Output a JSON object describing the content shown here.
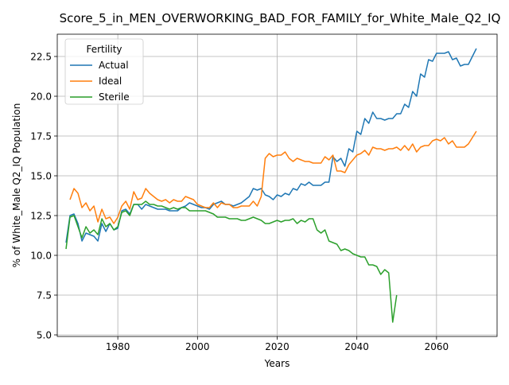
{
  "chart_data": {
    "type": "line",
    "title": "Score_5_in_MEN_OVERWORKING_BAD_FOR_FAMILY_for_White_Male_Q2_IQ",
    "xlabel": "Years",
    "ylabel": "% of White_Male Q2_IQ Population",
    "xlim": [
      1964.8,
      2075.2
    ],
    "ylim": [
      4.9,
      23.9
    ],
    "xticks": [
      1980,
      2000,
      2020,
      2040,
      2060
    ],
    "yticks": [
      5.0,
      7.5,
      10.0,
      12.5,
      15.0,
      17.5,
      20.0,
      22.5
    ],
    "grid": true,
    "legend": {
      "title": "Fertility",
      "placement": "top-left"
    },
    "series": [
      {
        "name": "Actual",
        "color": "#1f77b4",
        "points": [
          [
            1967,
            10.8
          ],
          [
            1968,
            12.5
          ],
          [
            1969,
            12.6
          ],
          [
            1970,
            12.0
          ],
          [
            1971,
            10.9
          ],
          [
            1972,
            11.4
          ],
          [
            1973,
            11.3
          ],
          [
            1974,
            11.2
          ],
          [
            1975,
            10.9
          ],
          [
            1976,
            12.0
          ],
          [
            1977,
            11.5
          ],
          [
            1978,
            12.0
          ],
          [
            1979,
            11.6
          ],
          [
            1980,
            11.7
          ],
          [
            1981,
            12.8
          ],
          [
            1982,
            12.9
          ],
          [
            1983,
            12.6
          ],
          [
            1984,
            13.2
          ],
          [
            1985,
            13.2
          ],
          [
            1986,
            12.9
          ],
          [
            1987,
            13.2
          ],
          [
            1988,
            13.1
          ],
          [
            1989,
            13.0
          ],
          [
            1990,
            12.9
          ],
          [
            1991,
            12.9
          ],
          [
            1992,
            12.9
          ],
          [
            1993,
            12.8
          ],
          [
            1994,
            12.8
          ],
          [
            1995,
            12.8
          ],
          [
            1996,
            13.0
          ],
          [
            1997,
            13.1
          ],
          [
            1998,
            13.3
          ],
          [
            1999,
            13.2
          ],
          [
            2000,
            13.1
          ],
          [
            2001,
            13.0
          ],
          [
            2002,
            13.0
          ],
          [
            2003,
            12.9
          ],
          [
            2004,
            13.2
          ],
          [
            2005,
            13.3
          ],
          [
            2006,
            13.4
          ],
          [
            2007,
            13.2
          ],
          [
            2008,
            13.2
          ],
          [
            2009,
            13.1
          ],
          [
            2010,
            13.2
          ],
          [
            2011,
            13.3
          ],
          [
            2012,
            13.5
          ],
          [
            2013,
            13.7
          ],
          [
            2014,
            14.2
          ],
          [
            2015,
            14.1
          ],
          [
            2016,
            14.2
          ],
          [
            2017,
            13.8
          ],
          [
            2018,
            13.7
          ],
          [
            2019,
            13.5
          ],
          [
            2020,
            13.8
          ],
          [
            2021,
            13.7
          ],
          [
            2022,
            13.9
          ],
          [
            2023,
            13.8
          ],
          [
            2024,
            14.2
          ],
          [
            2025,
            14.1
          ],
          [
            2026,
            14.5
          ],
          [
            2027,
            14.4
          ],
          [
            2028,
            14.6
          ],
          [
            2029,
            14.4
          ],
          [
            2030,
            14.4
          ],
          [
            2031,
            14.4
          ],
          [
            2032,
            14.6
          ],
          [
            2033,
            14.6
          ],
          [
            2034,
            16.2
          ],
          [
            2035,
            15.9
          ],
          [
            2036,
            16.1
          ],
          [
            2037,
            15.6
          ],
          [
            2038,
            16.7
          ],
          [
            2039,
            16.5
          ],
          [
            2040,
            17.8
          ],
          [
            2041,
            17.6
          ],
          [
            2042,
            18.6
          ],
          [
            2043,
            18.3
          ],
          [
            2044,
            19.0
          ],
          [
            2045,
            18.6
          ],
          [
            2046,
            18.6
          ],
          [
            2047,
            18.5
          ],
          [
            2048,
            18.6
          ],
          [
            2049,
            18.6
          ],
          [
            2050,
            18.9
          ],
          [
            2051,
            18.9
          ],
          [
            2052,
            19.5
          ],
          [
            2053,
            19.3
          ],
          [
            2054,
            20.3
          ],
          [
            2055,
            20.0
          ],
          [
            2056,
            21.4
          ],
          [
            2057,
            21.2
          ],
          [
            2058,
            22.3
          ],
          [
            2059,
            22.2
          ],
          [
            2060,
            22.7
          ],
          [
            2061,
            22.7
          ],
          [
            2062,
            22.7
          ],
          [
            2063,
            22.8
          ],
          [
            2064,
            22.3
          ],
          [
            2065,
            22.4
          ],
          [
            2066,
            21.9
          ],
          [
            2067,
            22.0
          ],
          [
            2068,
            22.0
          ],
          [
            2069,
            22.5
          ],
          [
            2070,
            23.0
          ]
        ]
      },
      {
        "name": "Ideal",
        "color": "#ff7f0e",
        "points": [
          [
            1968,
            13.5
          ],
          [
            1969,
            14.2
          ],
          [
            1970,
            13.9
          ],
          [
            1971,
            13.0
          ],
          [
            1972,
            13.3
          ],
          [
            1973,
            12.8
          ],
          [
            1974,
            13.1
          ],
          [
            1975,
            12.1
          ],
          [
            1976,
            12.9
          ],
          [
            1977,
            12.3
          ],
          [
            1978,
            12.4
          ],
          [
            1979,
            12.0
          ],
          [
            1980,
            12.4
          ],
          [
            1981,
            13.1
          ],
          [
            1982,
            13.4
          ],
          [
            1983,
            12.9
          ],
          [
            1984,
            14.0
          ],
          [
            1985,
            13.5
          ],
          [
            1986,
            13.6
          ],
          [
            1987,
            14.2
          ],
          [
            1988,
            13.9
          ],
          [
            1989,
            13.7
          ],
          [
            1990,
            13.5
          ],
          [
            1991,
            13.4
          ],
          [
            1992,
            13.5
          ],
          [
            1993,
            13.3
          ],
          [
            1994,
            13.5
          ],
          [
            1995,
            13.4
          ],
          [
            1996,
            13.4
          ],
          [
            1997,
            13.7
          ],
          [
            1998,
            13.6
          ],
          [
            1999,
            13.5
          ],
          [
            2000,
            13.2
          ],
          [
            2001,
            13.1
          ],
          [
            2002,
            13.0
          ],
          [
            2003,
            13.0
          ],
          [
            2004,
            13.3
          ],
          [
            2005,
            13.0
          ],
          [
            2006,
            13.3
          ],
          [
            2007,
            13.2
          ],
          [
            2008,
            13.2
          ],
          [
            2009,
            13.0
          ],
          [
            2010,
            13.0
          ],
          [
            2011,
            13.1
          ],
          [
            2012,
            13.1
          ],
          [
            2013,
            13.1
          ],
          [
            2014,
            13.4
          ],
          [
            2015,
            13.1
          ],
          [
            2016,
            13.7
          ],
          [
            2017,
            16.1
          ],
          [
            2018,
            16.4
          ],
          [
            2019,
            16.2
          ],
          [
            2020,
            16.3
          ],
          [
            2021,
            16.3
          ],
          [
            2022,
            16.5
          ],
          [
            2023,
            16.1
          ],
          [
            2024,
            15.9
          ],
          [
            2025,
            16.1
          ],
          [
            2026,
            16.0
          ],
          [
            2027,
            15.9
          ],
          [
            2028,
            15.9
          ],
          [
            2029,
            15.8
          ],
          [
            2030,
            15.8
          ],
          [
            2031,
            15.8
          ],
          [
            2032,
            16.2
          ],
          [
            2033,
            16.0
          ],
          [
            2034,
            16.3
          ],
          [
            2035,
            15.3
          ],
          [
            2036,
            15.3
          ],
          [
            2037,
            15.2
          ],
          [
            2038,
            15.7
          ],
          [
            2039,
            16.0
          ],
          [
            2040,
            16.3
          ],
          [
            2041,
            16.4
          ],
          [
            2042,
            16.6
          ],
          [
            2043,
            16.3
          ],
          [
            2044,
            16.8
          ],
          [
            2045,
            16.7
          ],
          [
            2046,
            16.7
          ],
          [
            2047,
            16.6
          ],
          [
            2048,
            16.7
          ],
          [
            2049,
            16.7
          ],
          [
            2050,
            16.8
          ],
          [
            2051,
            16.6
          ],
          [
            2052,
            16.9
          ],
          [
            2053,
            16.6
          ],
          [
            2054,
            17.0
          ],
          [
            2055,
            16.5
          ],
          [
            2056,
            16.8
          ],
          [
            2057,
            16.9
          ],
          [
            2058,
            16.9
          ],
          [
            2059,
            17.2
          ],
          [
            2060,
            17.3
          ],
          [
            2061,
            17.2
          ],
          [
            2062,
            17.4
          ],
          [
            2063,
            17.0
          ],
          [
            2064,
            17.2
          ],
          [
            2065,
            16.8
          ],
          [
            2066,
            16.8
          ],
          [
            2067,
            16.8
          ],
          [
            2068,
            17.0
          ],
          [
            2069,
            17.4
          ],
          [
            2070,
            17.8
          ]
        ]
      },
      {
        "name": "Sterile",
        "color": "#2ca02c",
        "points": [
          [
            1967,
            10.4
          ],
          [
            1968,
            12.4
          ],
          [
            1969,
            12.5
          ],
          [
            1970,
            11.8
          ],
          [
            1971,
            11.1
          ],
          [
            1972,
            11.8
          ],
          [
            1973,
            11.4
          ],
          [
            1974,
            11.6
          ],
          [
            1975,
            11.3
          ],
          [
            1976,
            12.3
          ],
          [
            1977,
            11.8
          ],
          [
            1978,
            12.0
          ],
          [
            1979,
            11.6
          ],
          [
            1980,
            11.8
          ],
          [
            1981,
            12.7
          ],
          [
            1982,
            12.8
          ],
          [
            1983,
            12.5
          ],
          [
            1984,
            13.2
          ],
          [
            1985,
            13.2
          ],
          [
            1986,
            13.2
          ],
          [
            1987,
            13.4
          ],
          [
            1988,
            13.2
          ],
          [
            1989,
            13.2
          ],
          [
            1990,
            13.1
          ],
          [
            1991,
            13.1
          ],
          [
            1992,
            13.0
          ],
          [
            1993,
            12.9
          ],
          [
            1994,
            13.0
          ],
          [
            1995,
            12.9
          ],
          [
            1996,
            13.0
          ],
          [
            1997,
            13.0
          ],
          [
            1998,
            12.8
          ],
          [
            1999,
            12.8
          ],
          [
            2000,
            12.8
          ],
          [
            2001,
            12.8
          ],
          [
            2002,
            12.8
          ],
          [
            2003,
            12.7
          ],
          [
            2004,
            12.6
          ],
          [
            2005,
            12.4
          ],
          [
            2006,
            12.4
          ],
          [
            2007,
            12.4
          ],
          [
            2008,
            12.3
          ],
          [
            2009,
            12.3
          ],
          [
            2010,
            12.3
          ],
          [
            2011,
            12.2
          ],
          [
            2012,
            12.2
          ],
          [
            2013,
            12.3
          ],
          [
            2014,
            12.4
          ],
          [
            2015,
            12.3
          ],
          [
            2016,
            12.2
          ],
          [
            2017,
            12.0
          ],
          [
            2018,
            12.0
          ],
          [
            2019,
            12.1
          ],
          [
            2020,
            12.2
          ],
          [
            2021,
            12.1
          ],
          [
            2022,
            12.2
          ],
          [
            2023,
            12.2
          ],
          [
            2024,
            12.3
          ],
          [
            2025,
            12.0
          ],
          [
            2026,
            12.2
          ],
          [
            2027,
            12.1
          ],
          [
            2028,
            12.3
          ],
          [
            2029,
            12.3
          ],
          [
            2030,
            11.6
          ],
          [
            2031,
            11.4
          ],
          [
            2032,
            11.6
          ],
          [
            2033,
            10.9
          ],
          [
            2034,
            10.8
          ],
          [
            2035,
            10.7
          ],
          [
            2036,
            10.3
          ],
          [
            2037,
            10.4
          ],
          [
            2038,
            10.3
          ],
          [
            2039,
            10.1
          ],
          [
            2040,
            10.0
          ],
          [
            2041,
            9.9
          ],
          [
            2042,
            9.9
          ],
          [
            2043,
            9.4
          ],
          [
            2044,
            9.4
          ],
          [
            2045,
            9.3
          ],
          [
            2046,
            8.8
          ],
          [
            2047,
            9.1
          ],
          [
            2048,
            8.9
          ],
          [
            2049,
            5.8
          ],
          [
            2050,
            7.5
          ]
        ]
      }
    ]
  }
}
